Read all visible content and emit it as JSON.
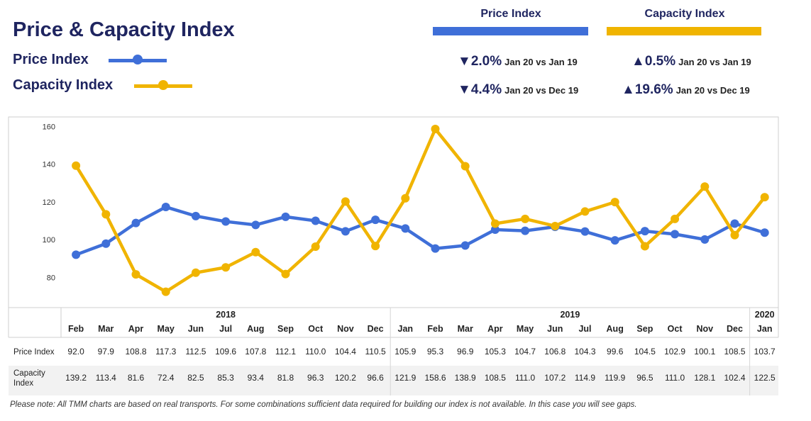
{
  "header": {
    "title": "Price & Capacity Index",
    "legend": [
      {
        "label": "Price Index",
        "color": "#3f6fd8"
      },
      {
        "label": "Capacity Index",
        "color": "#f0b400"
      }
    ]
  },
  "kpis": [
    {
      "heading": "Price Index",
      "color": "#3f6fd8",
      "rows": [
        {
          "arrow": "▼",
          "value": "2.0%",
          "comparison": "Jan 20 vs Jan 19"
        },
        {
          "arrow": "▼",
          "value": "4.4%",
          "comparison": "Jan 20 vs Dec 19"
        }
      ]
    },
    {
      "heading": "Capacity Index",
      "color": "#f0b400",
      "rows": [
        {
          "arrow": "▲",
          "value": "0.5%",
          "comparison": "Jan 20 vs Jan 19"
        },
        {
          "arrow": "▲",
          "value": "19.6%",
          "comparison": "Jan 20 vs Dec 19"
        }
      ]
    }
  ],
  "chart_data": {
    "type": "line",
    "categories": [
      "Feb",
      "Mar",
      "Apr",
      "May",
      "Jun",
      "Jul",
      "Aug",
      "Sep",
      "Oct",
      "Nov",
      "Dec",
      "Jan",
      "Feb",
      "Mar",
      "Apr",
      "May",
      "Jun",
      "Jul",
      "Aug",
      "Sep",
      "Oct",
      "Nov",
      "Dec",
      "Jan"
    ],
    "years": [
      {
        "label": "2018",
        "start": 0,
        "end": 10
      },
      {
        "label": "2019",
        "start": 11,
        "end": 22
      },
      {
        "label": "2020",
        "start": 23,
        "end": 23
      }
    ],
    "yticks": [
      80,
      100,
      120,
      140,
      160
    ],
    "ylim": [
      64,
      165
    ],
    "grid": false,
    "series": [
      {
        "name": "Price Index",
        "color": "#3f6fd8",
        "values": [
          92.0,
          97.9,
          108.8,
          117.3,
          112.5,
          109.6,
          107.8,
          112.1,
          110.0,
          104.4,
          110.5,
          105.9,
          95.3,
          96.9,
          105.3,
          104.7,
          106.8,
          104.3,
          99.6,
          104.5,
          102.9,
          100.1,
          108.5,
          103.7
        ],
        "labels": [
          "92.0",
          "97.9",
          "108.8",
          "117.3",
          "112.5",
          "109.6",
          "107.8",
          "112.1",
          "110.0",
          "104.4",
          "110.5",
          "105.9",
          "95.3",
          "96.9",
          "105.3",
          "104.7",
          "106.8",
          "104.3",
          "99.6",
          "104.5",
          "102.9",
          "100.1",
          "108.5",
          "103.7"
        ]
      },
      {
        "name": "Capacity Index",
        "color": "#f0b400",
        "values": [
          139.2,
          113.4,
          81.6,
          72.4,
          82.5,
          85.3,
          93.4,
          81.8,
          96.3,
          120.2,
          96.6,
          121.9,
          158.6,
          138.9,
          108.5,
          111.0,
          107.2,
          114.9,
          119.9,
          96.5,
          111.0,
          128.1,
          102.4,
          122.5
        ],
        "labels": [
          "139.2",
          "113.4",
          "81.6",
          "72.4",
          "82.5",
          "85.3",
          "93.4",
          "81.8",
          "96.3",
          "120.2",
          "96.6",
          "121.9",
          "158.6",
          "138.9",
          "108.5",
          "111.0",
          "107.2",
          "114.9",
          "119.9",
          "96.5",
          "111.0",
          "128.1",
          "102.4",
          "122.5"
        ]
      }
    ],
    "table_rows": [
      {
        "label_lines": [
          "Price Index"
        ]
      },
      {
        "label_lines": [
          "Capacity",
          "Index"
        ]
      }
    ]
  },
  "footer": {
    "note": "Please note: All TMM charts are based on real transports. For some combinations sufficient data required for building our index is not available. In this case you will see gaps."
  }
}
